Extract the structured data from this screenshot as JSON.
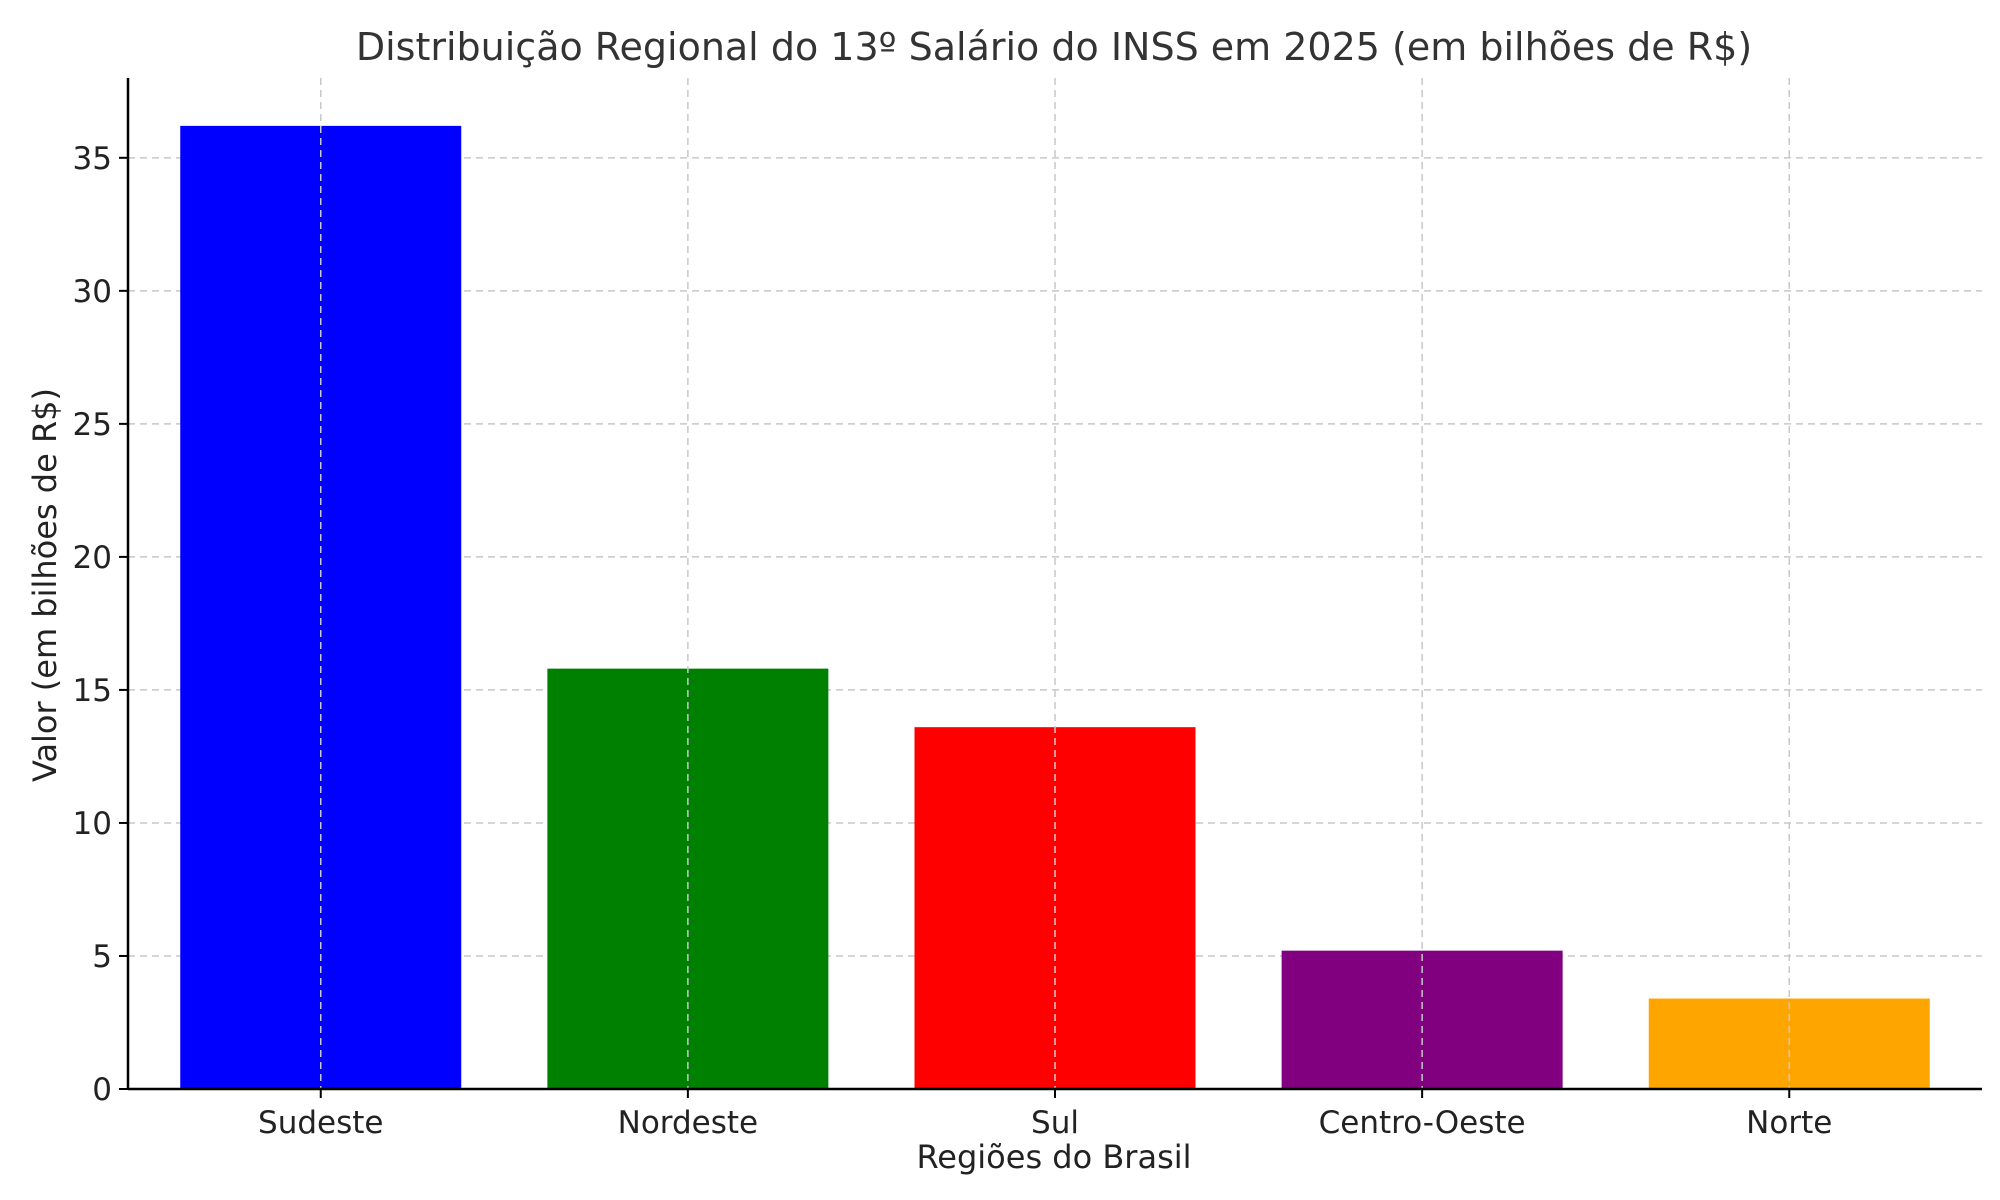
{
  "chart_data": {
    "type": "bar",
    "title": "Distribuição Regional do 13º Salário do INSS em 2025 (em bilhões de R$)",
    "xlabel": "Regiões do Brasil",
    "ylabel": "Valor (em bilhões de R$)",
    "categories": [
      "Sudeste",
      "Nordeste",
      "Sul",
      "Centro-Oeste",
      "Norte"
    ],
    "values": [
      36.2,
      15.8,
      13.6,
      5.2,
      3.4
    ],
    "colors": [
      "#0000ff",
      "#008000",
      "#ff0000",
      "#800080",
      "#ffa500"
    ],
    "ylim": [
      0,
      38
    ],
    "yticks": [
      0,
      5,
      10,
      15,
      20,
      25,
      30,
      35
    ],
    "grid": true
  }
}
